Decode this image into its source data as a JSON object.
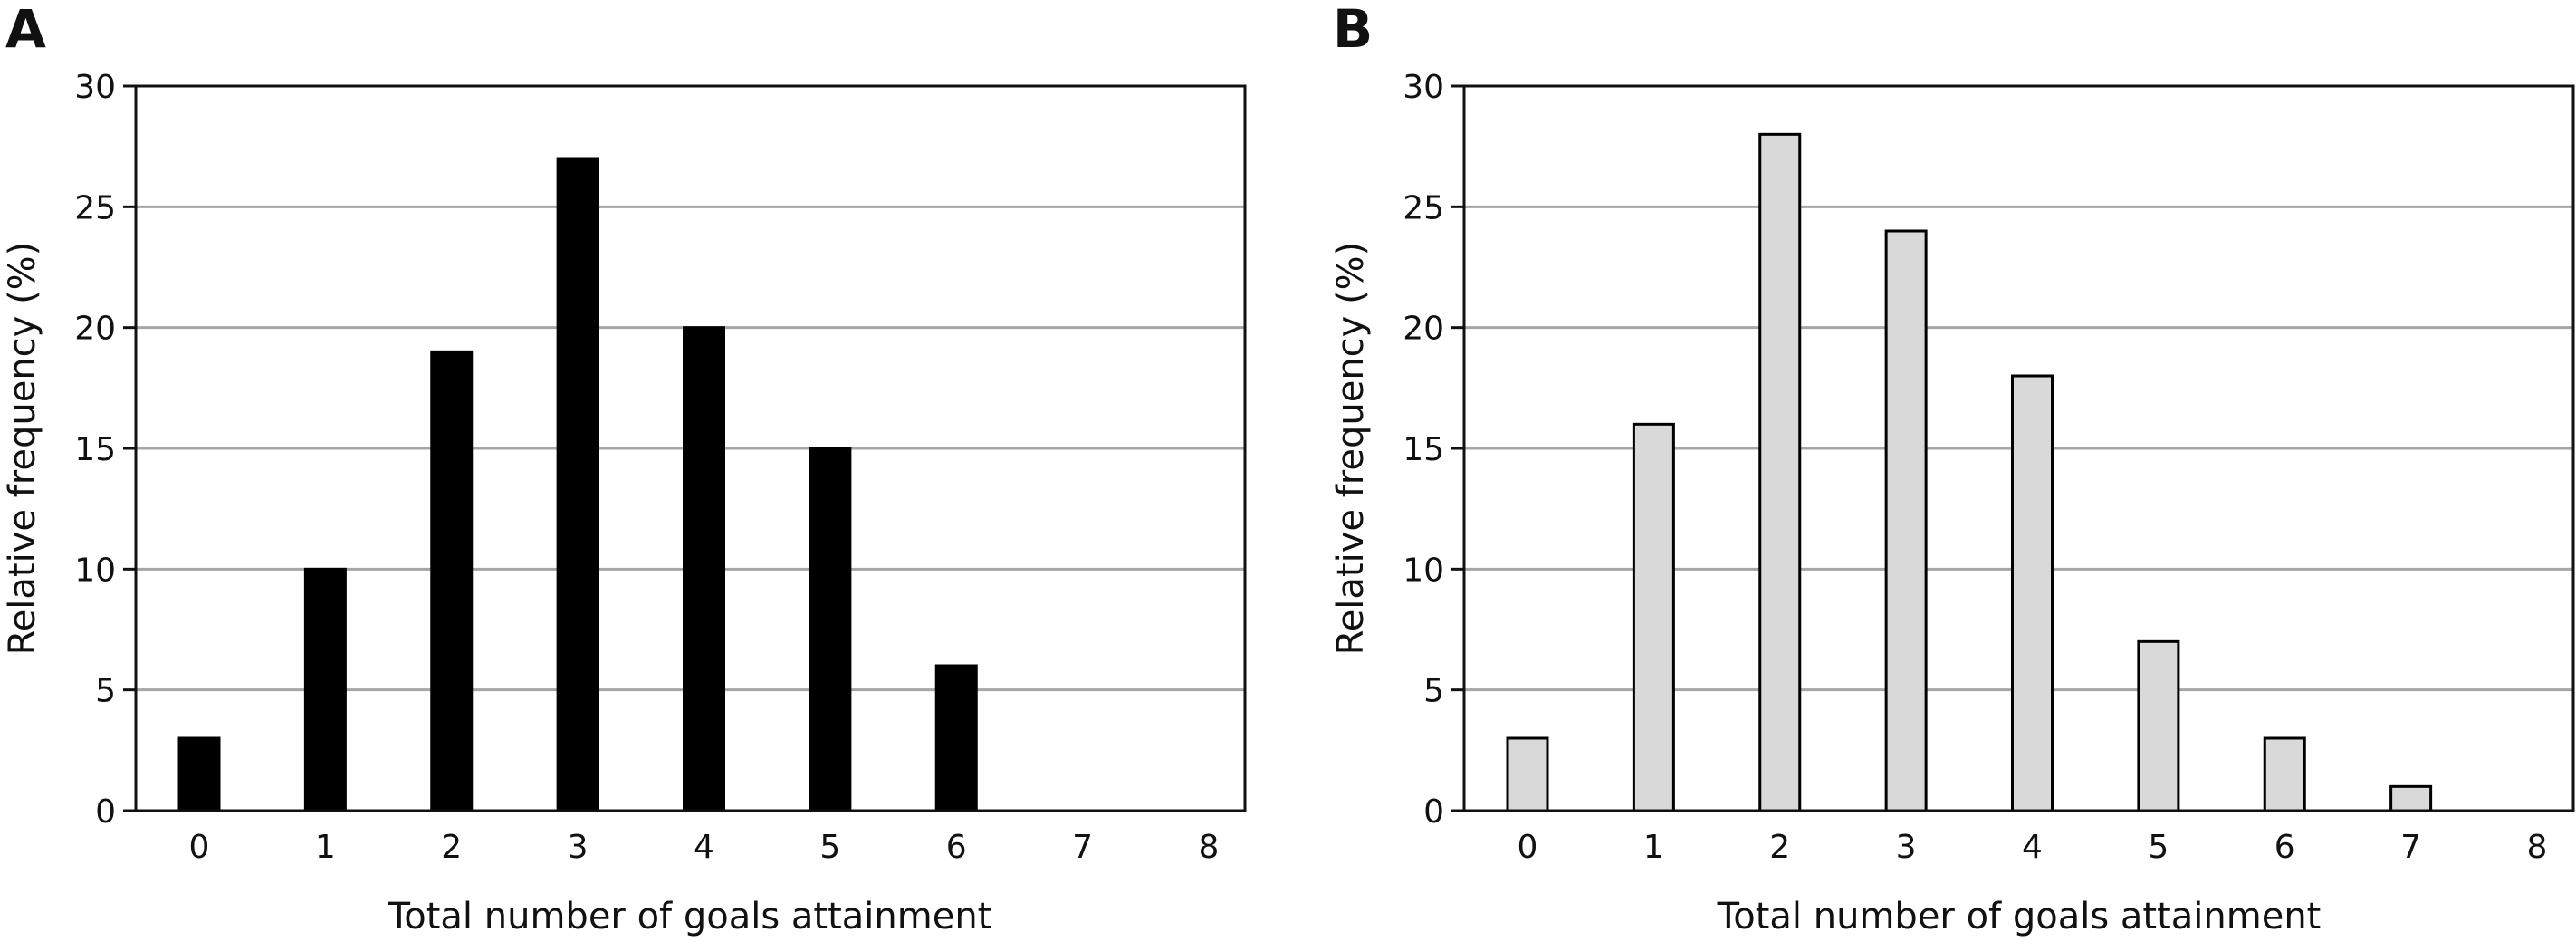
{
  "chart_data": [
    {
      "type": "bar",
      "panel_label": "A",
      "xlabel": "Total number of goals attainment",
      "ylabel": "Relative frequency (%)",
      "categories": [
        "0",
        "1",
        "2",
        "3",
        "4",
        "5",
        "6",
        "7",
        "8"
      ],
      "values": [
        3,
        10,
        19,
        27,
        20,
        15,
        6,
        0,
        0
      ],
      "ylim": [
        0,
        30
      ],
      "yticks": [
        "0",
        "5",
        "10",
        "15",
        "20",
        "25",
        "30"
      ],
      "grid": "horizontal",
      "legend": "none",
      "bar_color": "#000000",
      "bar_edge_color": "#000000"
    },
    {
      "type": "bar",
      "panel_label": "B",
      "xlabel": "Total number of goals attainment",
      "ylabel": "Relative frequency (%)",
      "categories": [
        "0",
        "1",
        "2",
        "3",
        "4",
        "5",
        "6",
        "7",
        "8"
      ],
      "values": [
        3,
        16,
        28,
        24,
        18,
        7,
        3,
        1,
        0
      ],
      "ylim": [
        0,
        30
      ],
      "yticks": [
        "0",
        "5",
        "10",
        "15",
        "20",
        "25",
        "30"
      ],
      "grid": "horizontal",
      "legend": "none",
      "bar_color": "#d9d9d9",
      "bar_edge_color": "#000000"
    }
  ]
}
